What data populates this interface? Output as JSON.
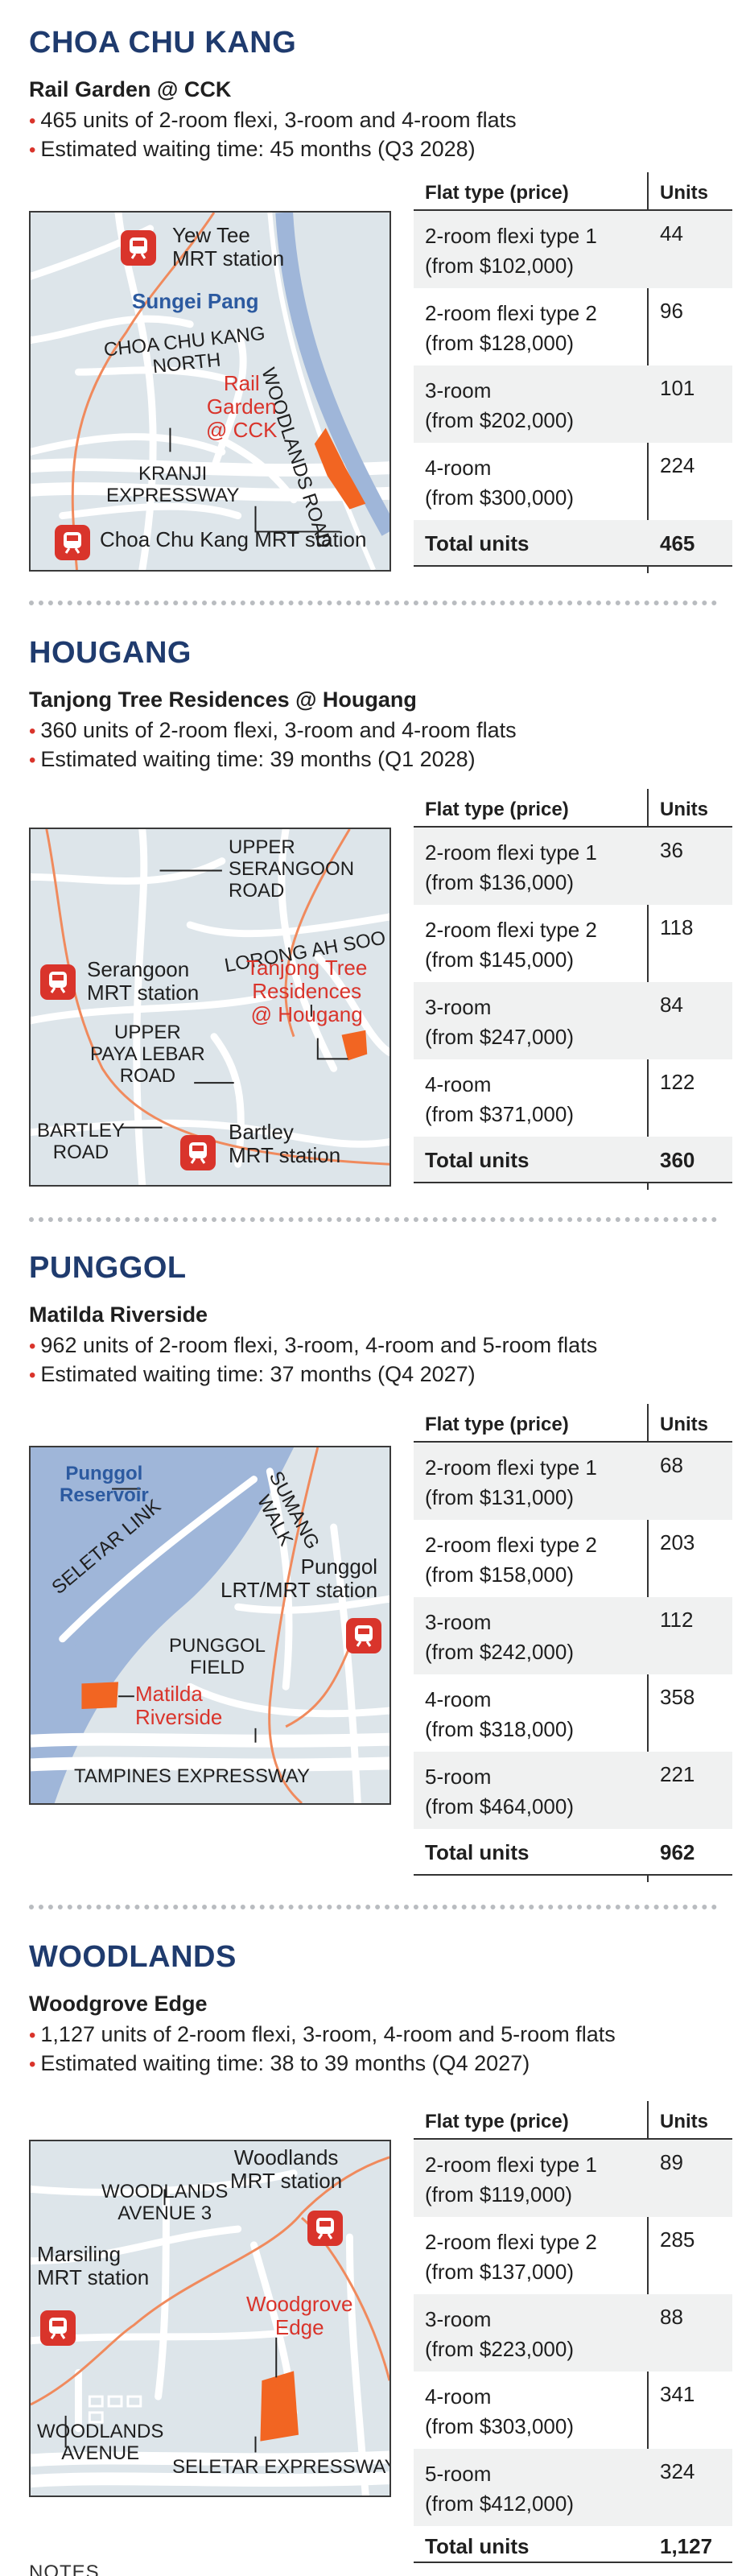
{
  "headers": {
    "flat_type": "Flat type (price)",
    "units": "Units",
    "total": "Total units"
  },
  "colors": {
    "region": "#1f3b6e",
    "accent": "#d9342b",
    "site": "#f26522",
    "water": "#9fb6d9"
  },
  "sections": [
    {
      "region": "CHOA CHU KANG",
      "project": "Rail Garden @ CCK",
      "bullets": [
        "465 units of 2-room flexi, 3-room and 4-room flats",
        "Estimated waiting time: 45 months (Q3 2028)"
      ],
      "map": {
        "yew_tee_1": "Yew Tee",
        "yew_tee_2": "MRT station",
        "sungei_pang": "Sungei Pang",
        "cck_north_1": "CHOA CHU KANG",
        "cck_north_2": "NORTH",
        "woodlands_road": "WOODLANDS ROAD",
        "site_1": "Rail",
        "site_2": "Garden",
        "site_3": "@ CCK",
        "kranji_1": "KRANJI",
        "kranji_2": "EXPRESSWAY",
        "cck_mrt": "Choa Chu Kang MRT station"
      },
      "rows": [
        {
          "type": "2-room flexi type 1",
          "price": "(from $102,000)",
          "units": "44"
        },
        {
          "type": "2-room flexi type 2",
          "price": "(from $128,000)",
          "units": "96"
        },
        {
          "type": "3-room",
          "price": "(from $202,000)",
          "units": "101"
        },
        {
          "type": "4-room",
          "price": "(from $300,000)",
          "units": "224"
        }
      ],
      "total": "465"
    },
    {
      "region": "HOUGANG",
      "project": "Tanjong Tree Residences @ Hougang",
      "bullets": [
        "360 units of 2-room flexi, 3-room and 4-room flats",
        "Estimated waiting time: 39 months (Q1 2028)"
      ],
      "map": {
        "usr_1": "UPPER",
        "usr_2": "SERANGOON",
        "usr_3": "ROAD",
        "lorong": "LORONG AH SOO",
        "serangoon_1": "Serangoon",
        "serangoon_2": "MRT station",
        "site_1": "Tanjong Tree",
        "site_2": "Residences",
        "site_3": "@ Hougang",
        "upl_1": "UPPER",
        "upl_2": "PAYA LEBAR",
        "upl_3": "ROAD",
        "bartley_rd_1": "BARTLEY",
        "bartley_rd_2": "ROAD",
        "bartley_mrt_1": "Bartley",
        "bartley_mrt_2": "MRT station"
      },
      "rows": [
        {
          "type": "2-room flexi type 1",
          "price": "(from $136,000)",
          "units": "36"
        },
        {
          "type": "2-room flexi type 2",
          "price": "(from $145,000)",
          "units": "118"
        },
        {
          "type": "3-room",
          "price": "(from $247,000)",
          "units": "84"
        },
        {
          "type": "4-room",
          "price": "(from $371,000)",
          "units": "122"
        }
      ],
      "total": "360"
    },
    {
      "region": "PUNGGOL",
      "project": "Matilda Riverside",
      "bullets": [
        "962 units of 2-room flexi, 3-room, 4-room and 5-room flats",
        "Estimated waiting time: 37 months (Q4 2027)"
      ],
      "map": {
        "reservoir_1": "Punggol",
        "reservoir_2": "Reservoir",
        "seletar_link": "SELETAR LINK",
        "sumang_1": "SUMANG",
        "sumang_2": "WALK",
        "punggol_mrt_1": "Punggol",
        "punggol_mrt_2": "LRT/MRT station",
        "field_1": "PUNGGOL",
        "field_2": "FIELD",
        "site_1": "Matilda",
        "site_2": "Riverside",
        "tpe": "TAMPINES EXPRESSWAY"
      },
      "rows": [
        {
          "type": "2-room flexi type 1",
          "price": "(from $131,000)",
          "units": "68"
        },
        {
          "type": "2-room flexi type 2",
          "price": "(from $158,000)",
          "units": "203"
        },
        {
          "type": "3-room",
          "price": "(from $242,000)",
          "units": "112"
        },
        {
          "type": "4-room",
          "price": "(from $318,000)",
          "units": "358"
        },
        {
          "type": "5-room",
          "price": "(from $464,000)",
          "units": "221"
        }
      ],
      "total": "962"
    },
    {
      "region": "WOODLANDS",
      "project": "Woodgrove Edge",
      "bullets": [
        "1,127 units of 2-room flexi, 3-room, 4-room and 5-room flats",
        "Estimated waiting time: 38 to 39 months (Q4 2027)"
      ],
      "map": {
        "woodlands_mrt_1": "Woodlands",
        "woodlands_mrt_2": "MRT station",
        "wa3_1": "WOODLANDS",
        "wa3_2": "AVENUE 3",
        "marsiling_1": "Marsiling",
        "marsiling_2": "MRT station",
        "site_1": "Woodgrove",
        "site_2": "Edge",
        "wa_1": "WOODLANDS",
        "wa_2": "AVENUE",
        "sle": "SELETAR EXPRESSWAY"
      },
      "rows": [
        {
          "type": "2-room flexi type 1",
          "price": "(from $119,000)",
          "units": "89"
        },
        {
          "type": "2-room flexi type 2",
          "price": "(from $137,000)",
          "units": "285"
        },
        {
          "type": "3-room",
          "price": "(from $223,000)",
          "units": "88"
        },
        {
          "type": "4-room",
          "price": "(from $303,000)",
          "units": "341"
        },
        {
          "type": "5-room",
          "price": "(from $412,000)",
          "units": "324"
        }
      ],
      "total": "1,127"
    }
  ],
  "footer": {
    "notes": "NOTES"
  }
}
